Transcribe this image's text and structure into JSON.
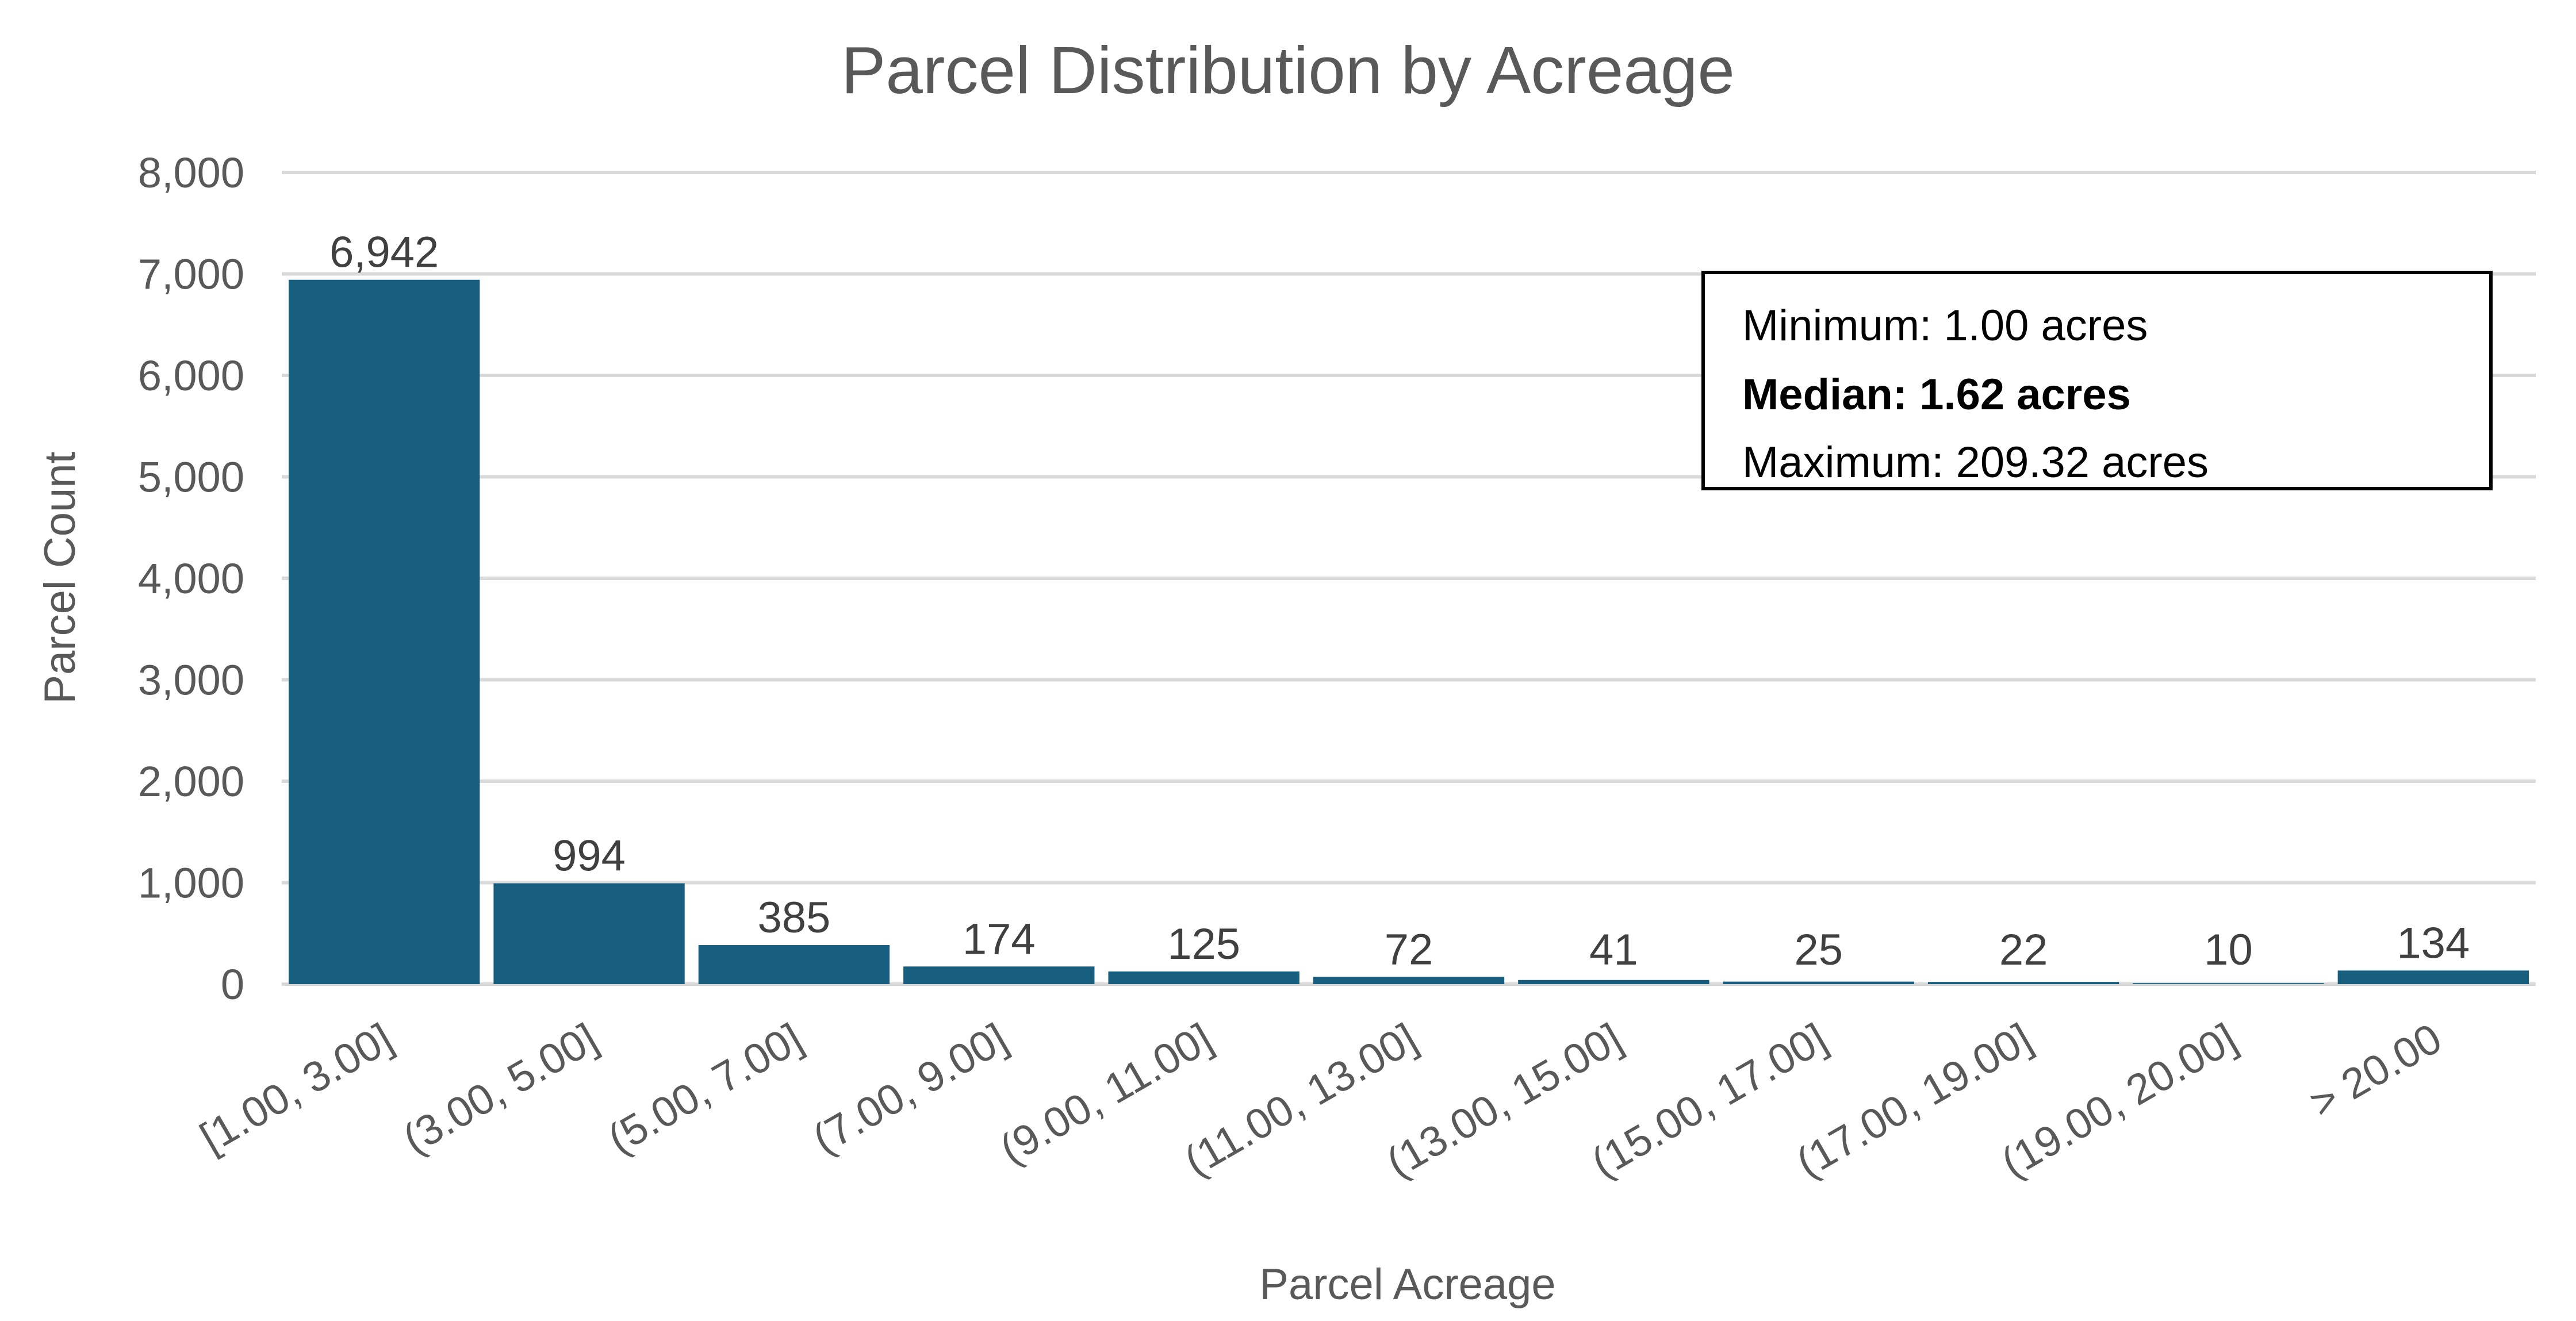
{
  "chart_data": {
    "type": "bar",
    "title": "Parcel Distribution by Acreage",
    "xlabel": "Parcel Acreage",
    "ylabel": "Parcel Count",
    "ylim": [
      0,
      8000
    ],
    "y_ticks": [
      "0",
      "1,000",
      "2,000",
      "3,000",
      "4,000",
      "5,000",
      "6,000",
      "7,000",
      "8,000"
    ],
    "y_tick_values": [
      0,
      1000,
      2000,
      3000,
      4000,
      5000,
      6000,
      7000,
      8000
    ],
    "grid": true,
    "legend": "none",
    "categories": [
      "[1.00, 3.00]",
      "(3.00, 5.00]",
      "(5.00, 7.00]",
      "(7.00, 9.00]",
      "(9.00, 11.00]",
      "(11.00, 13.00]",
      "(13.00, 15.00]",
      "(15.00, 17.00]",
      "(17.00, 19.00]",
      "(19.00, 20.00]",
      "> 20.00"
    ],
    "values": [
      6942,
      994,
      385,
      174,
      125,
      72,
      41,
      25,
      22,
      10,
      134
    ],
    "value_labels": [
      "6,942",
      "994",
      "385",
      "174",
      "125",
      "72",
      "41",
      "25",
      "22",
      "10",
      "134"
    ],
    "bar_color": "#185f7f"
  },
  "stats_box": {
    "minimum": "Minimum: 1.00 acres",
    "median": "Median: 1.62 acres",
    "maximum": "Maximum: 209.32 acres"
  }
}
